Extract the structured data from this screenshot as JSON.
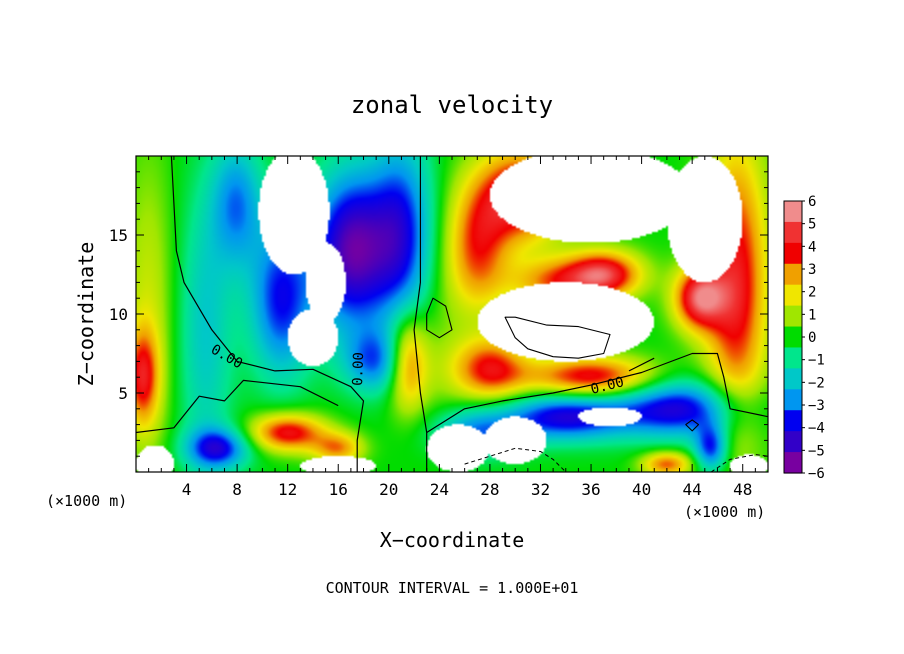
{
  "chart_data": {
    "type": "heatmap",
    "title": "zonal velocity",
    "xlabel": "X−coordinate",
    "ylabel": "Z−coordinate",
    "x_unit_left": "(×1000 m)",
    "x_unit_right": "(×1000 m)",
    "footer": "CONTOUR INTERVAL = 1.000E+01",
    "xlim": [
      0,
      50
    ],
    "ylim": [
      0,
      20
    ],
    "x_ticks": [
      4,
      8,
      12,
      16,
      20,
      24,
      28,
      32,
      36,
      40,
      44,
      48
    ],
    "y_ticks": [
      5,
      10,
      15
    ],
    "contour_labels": [
      "0.00",
      "0.00",
      "0.00"
    ],
    "colorbar": {
      "ticks": [
        6,
        5,
        4,
        3,
        2,
        1,
        0,
        -1,
        -2,
        -3,
        -4,
        -5,
        -6
      ],
      "tick_labels": [
        "6",
        "5",
        "4",
        "3",
        "2",
        "1",
        "0",
        "−1",
        "−2",
        "−3",
        "−4",
        "−5",
        "−6"
      ],
      "colors": [
        "#f08c8c",
        "#f03232",
        "#f00000",
        "#f0a000",
        "#f0e600",
        "#a0e600",
        "#00dc00",
        "#00e68c",
        "#00c8c8",
        "#0096f0",
        "#0000f0",
        "#3200c8",
        "#7800a0"
      ]
    },
    "field_blobs": [
      {
        "x": 1,
        "z": 10,
        "rx": 2,
        "rz": 10,
        "v": 1.5
      },
      {
        "x": 0.5,
        "z": 6,
        "rx": 1.3,
        "rz": 3,
        "v": 3.5
      },
      {
        "x": 5.5,
        "z": 9,
        "rx": 2.2,
        "rz": 9,
        "v": -2
      },
      {
        "x": 8,
        "z": 17,
        "rx": 2,
        "rz": 4,
        "v": -3
      },
      {
        "x": 11.5,
        "z": 11,
        "rx": 2.5,
        "rz": 5,
        "v": -4
      },
      {
        "x": 17,
        "z": 14,
        "rx": 3,
        "rz": 5,
        "v": -5.5
      },
      {
        "x": 21,
        "z": 15,
        "rx": 2.5,
        "rz": 6,
        "v": -4
      },
      {
        "x": 19,
        "z": 7,
        "rx": 2.5,
        "rz": 2,
        "v": -3
      },
      {
        "x": 21.5,
        "z": 7,
        "rx": 1.6,
        "rz": 3,
        "v": 4
      },
      {
        "x": 24,
        "z": 8,
        "rx": 2,
        "rz": 6,
        "v": 0.5
      },
      {
        "x": 27,
        "z": 14,
        "rx": 2.5,
        "rz": 4,
        "v": 3.5
      },
      {
        "x": 30.5,
        "z": 17.5,
        "rx": 3.5,
        "rz": 3,
        "v": 5
      },
      {
        "x": 33,
        "z": 12,
        "rx": 3.5,
        "rz": 1.5,
        "v": 3
      },
      {
        "x": 37,
        "z": 12.5,
        "rx": 3,
        "rz": 1.5,
        "v": 5
      },
      {
        "x": 28,
        "z": 6.5,
        "rx": 3,
        "rz": 2,
        "v": 4
      },
      {
        "x": 36,
        "z": 6,
        "rx": 5,
        "rz": 1.3,
        "v": 4.5
      },
      {
        "x": 47.5,
        "z": 12,
        "rx": 2.5,
        "rz": 9,
        "v": 4.5
      },
      {
        "x": 44.5,
        "z": 11,
        "rx": 2,
        "rz": 2,
        "v": 5
      },
      {
        "x": 34,
        "z": 3.5,
        "rx": 5,
        "rz": 1.5,
        "v": -4.5
      },
      {
        "x": 43,
        "z": 4,
        "rx": 5,
        "rz": 1.8,
        "v": -4.5
      },
      {
        "x": 27,
        "z": 2.5,
        "rx": 3.5,
        "rz": 1.5,
        "v": -3
      },
      {
        "x": 12,
        "z": 2.5,
        "rx": 3,
        "rz": 1.2,
        "v": 4.5
      },
      {
        "x": 6.5,
        "z": 1.5,
        "rx": 2.5,
        "rz": 1.3,
        "v": -4
      },
      {
        "x": 16,
        "z": 1.5,
        "rx": 2,
        "rz": 1,
        "v": 3
      },
      {
        "x": 42,
        "z": 0.5,
        "rx": 2,
        "rz": 0.8,
        "v": 3.5
      },
      {
        "x": 45.5,
        "z": 1.5,
        "rx": 1.3,
        "rz": 1.5,
        "v": -4
      }
    ],
    "undefined_regions": [
      {
        "x": 12.5,
        "z": 16.5,
        "rx": 2.8,
        "rz": 4
      },
      {
        "x": 14,
        "z": 8.5,
        "rx": 2,
        "rz": 1.8
      },
      {
        "x": 15,
        "z": 12,
        "rx": 1.6,
        "rz": 2.5
      },
      {
        "x": 36,
        "z": 17.5,
        "rx": 8,
        "rz": 3
      },
      {
        "x": 34,
        "z": 9.5,
        "rx": 7,
        "rz": 2.5
      },
      {
        "x": 45,
        "z": 16,
        "rx": 3,
        "rz": 4
      },
      {
        "x": 25.5,
        "z": 1.5,
        "rx": 2.5,
        "rz": 1.5
      },
      {
        "x": 30,
        "z": 2,
        "rx": 2.5,
        "rz": 1.5
      },
      {
        "x": 16,
        "z": 0.4,
        "rx": 3,
        "rz": 0.6
      },
      {
        "x": 1.5,
        "z": 0.5,
        "rx": 1.5,
        "rz": 1.2
      },
      {
        "x": 48.5,
        "z": 0.4,
        "rx": 1.5,
        "rz": 0.7
      },
      {
        "x": 37.5,
        "z": 3.5,
        "rx": 2.5,
        "rz": 0.6
      }
    ],
    "zero_contours": [
      [
        [
          2.8,
          20
        ],
        [
          3.2,
          14
        ],
        [
          3.8,
          12
        ],
        [
          6,
          9
        ],
        [
          8,
          7
        ],
        [
          11,
          6.4
        ],
        [
          14,
          6.5
        ],
        [
          17,
          5.4
        ],
        [
          18,
          4.5
        ],
        [
          17.5,
          2
        ],
        [
          17.5,
          0
        ]
      ],
      [
        [
          0,
          2.5
        ],
        [
          3,
          2.8
        ],
        [
          5,
          4.8
        ],
        [
          7,
          4.5
        ],
        [
          8.5,
          5.8
        ],
        [
          13,
          5.4
        ],
        [
          16,
          4.2
        ]
      ],
      [
        [
          22.5,
          20
        ],
        [
          22.5,
          12
        ],
        [
          22,
          9
        ],
        [
          22.5,
          5
        ],
        [
          23,
          2.5
        ],
        [
          23,
          0
        ]
      ],
      [
        [
          23,
          2.5
        ],
        [
          26,
          4
        ],
        [
          29,
          4.5
        ],
        [
          33,
          5
        ],
        [
          36,
          5.5
        ],
        [
          40,
          6.3
        ],
        [
          44,
          7.5
        ],
        [
          46,
          7.5
        ],
        [
          46.5,
          6
        ],
        [
          47,
          4
        ],
        [
          50,
          3.5
        ]
      ],
      [
        [
          41,
          7.2
        ],
        [
          39,
          6.4
        ]
      ]
    ],
    "closed_contours": [
      [
        [
          23,
          10
        ],
        [
          23.5,
          11
        ],
        [
          24.5,
          10.5
        ],
        [
          25,
          9
        ],
        [
          24,
          8.5
        ],
        [
          23,
          9
        ]
      ],
      [
        [
          29.2,
          9.8
        ],
        [
          30,
          9.8
        ],
        [
          32.5,
          9.3
        ],
        [
          35,
          9.2
        ],
        [
          37.5,
          8.7
        ],
        [
          37,
          7.5
        ],
        [
          35,
          7.2
        ],
        [
          33,
          7.3
        ],
        [
          31,
          7.8
        ],
        [
          30,
          8.5
        ]
      ],
      [
        [
          43.5,
          3
        ],
        [
          44,
          3.3
        ],
        [
          44.5,
          3
        ],
        [
          44,
          2.6
        ]
      ]
    ],
    "dashed_contours": [
      [
        [
          26,
          0.5
        ],
        [
          28,
          1
        ],
        [
          30,
          1.5
        ],
        [
          32,
          1.3
        ],
        [
          33,
          0.8
        ],
        [
          34,
          0
        ]
      ],
      [
        [
          45.5,
          0
        ],
        [
          47,
          0.8
        ],
        [
          49,
          1.1
        ],
        [
          50,
          1
        ]
      ]
    ]
  }
}
